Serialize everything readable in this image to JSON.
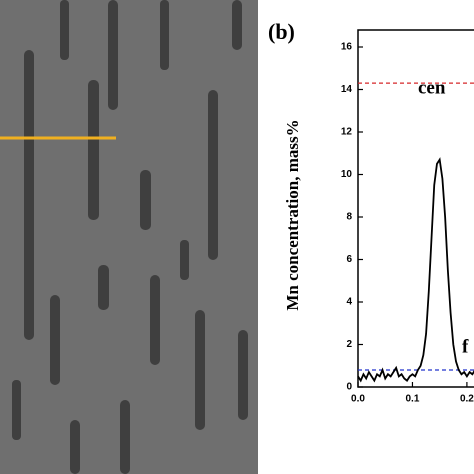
{
  "chart_data": {
    "type": "line",
    "panel_label": "(b)",
    "y_label": "Mn concentration, mass%",
    "annotations": [
      "cen",
      "f"
    ],
    "x": [
      0.0,
      0.005,
      0.01,
      0.015,
      0.02,
      0.025,
      0.03,
      0.035,
      0.04,
      0.045,
      0.05,
      0.055,
      0.06,
      0.065,
      0.07,
      0.075,
      0.08,
      0.085,
      0.09,
      0.095,
      0.1,
      0.105,
      0.11,
      0.115,
      0.12,
      0.125,
      0.13,
      0.135,
      0.14,
      0.145,
      0.15,
      0.155,
      0.16,
      0.165,
      0.17,
      0.175,
      0.18,
      0.185,
      0.19,
      0.195,
      0.2,
      0.205,
      0.21,
      0.215
    ],
    "series": [
      {
        "color": "#000000",
        "values": [
          0.5,
          0.3,
          0.6,
          0.4,
          0.7,
          0.5,
          0.3,
          0.6,
          0.5,
          0.8,
          0.4,
          0.6,
          0.5,
          0.7,
          0.9,
          0.5,
          0.6,
          0.4,
          0.3,
          0.5,
          0.6,
          0.5,
          0.8,
          1.0,
          1.5,
          2.5,
          4.5,
          7.0,
          9.5,
          10.5,
          10.7,
          9.8,
          8.0,
          5.5,
          3.5,
          2.0,
          1.2,
          0.8,
          0.6,
          0.7,
          0.5,
          0.7,
          0.6,
          0.8
        ]
      }
    ],
    "reference_lines": [
      {
        "value": 14.3,
        "color": "#d62728"
      },
      {
        "value": 0.8,
        "color": "#2233cc"
      }
    ],
    "xlim": [
      0,
      0.22
    ],
    "ylim": [
      0,
      16.8
    ],
    "xticks": [
      {
        "value": 0.0,
        "label": "0.0"
      },
      {
        "value": 0.1,
        "label": "0.1"
      },
      {
        "value": 0.2,
        "label": "0.2"
      }
    ],
    "yticks": [
      0,
      2,
      4,
      6,
      8,
      10,
      12,
      14,
      16
    ]
  }
}
